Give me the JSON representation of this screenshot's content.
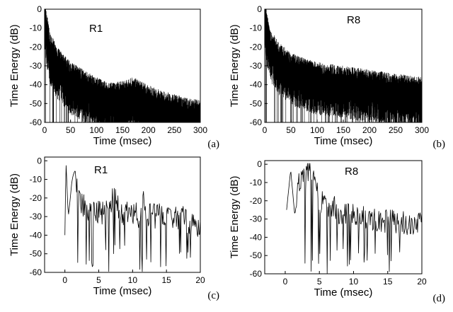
{
  "chart_data": [
    {
      "id": "a",
      "type": "line",
      "panel_label": "(a)",
      "title": "R1",
      "xlabel": "Time (msec)",
      "ylabel": "Time Energy (dB)",
      "xlim": [
        0,
        300
      ],
      "ylim": [
        -60,
        0
      ],
      "xticks": [
        0,
        50,
        100,
        150,
        200,
        250,
        300
      ],
      "yticks": [
        0,
        -10,
        -20,
        -30,
        -40,
        -50,
        -60
      ],
      "style": "dense",
      "series": [
        {
          "decay": [
            [
              0,
              -5
            ],
            [
              10,
              -22
            ],
            [
              25,
              -30
            ],
            [
              50,
              -38
            ],
            [
              75,
              -42
            ],
            [
              100,
              -46
            ],
            [
              125,
              -49
            ],
            [
              150,
              -48
            ],
            [
              170,
              -46
            ],
            [
              200,
              -50
            ],
            [
              225,
              -53
            ],
            [
              250,
              -55
            ],
            [
              275,
              -57
            ],
            [
              300,
              -58
            ]
          ],
          "initial_peak": [
            2,
            0
          ]
        }
      ]
    },
    {
      "id": "b",
      "type": "line",
      "panel_label": "(b)",
      "title": "R8",
      "xlabel": "Time (msec)",
      "ylabel": "Time Energy (dB)",
      "xlim": [
        0,
        300
      ],
      "ylim": [
        -60,
        0
      ],
      "xticks": [
        0,
        50,
        100,
        150,
        200,
        250,
        300
      ],
      "yticks": [
        0,
        -10,
        -20,
        -30,
        -40,
        -50,
        -60
      ],
      "style": "dense",
      "series": [
        {
          "decay": [
            [
              0,
              -5
            ],
            [
              10,
              -20
            ],
            [
              25,
              -27
            ],
            [
              50,
              -33
            ],
            [
              75,
              -36
            ],
            [
              100,
              -38
            ],
            [
              150,
              -40
            ],
            [
              200,
              -42
            ],
            [
              250,
              -44
            ],
            [
              300,
              -46
            ]
          ],
          "initial_peak": [
            3,
            0
          ]
        }
      ]
    },
    {
      "id": "c",
      "type": "line",
      "panel_label": "(c)",
      "title": "R1",
      "xlabel": "Time (msec)",
      "ylabel": "Time Energy (dB)",
      "xlim": [
        -3,
        20
      ],
      "ylim": [
        -60,
        2
      ],
      "xticks": [
        0,
        5,
        10,
        15,
        20
      ],
      "yticks": [
        0,
        -10,
        -20,
        -30,
        -40,
        -50,
        -60
      ],
      "style": "detail",
      "series": [
        {
          "start": 0,
          "x": [
            0,
            0.15,
            0.5,
            0.8,
            1.0,
            1.2,
            1.5,
            1.8,
            2.0,
            2.5,
            3,
            3.5,
            4,
            5,
            6,
            7,
            7.5,
            8,
            9,
            10,
            11,
            11.5,
            12,
            13,
            14,
            15,
            16,
            17,
            18,
            19,
            20
          ],
          "y": [
            -40,
            0,
            -30,
            -20,
            -12,
            -8,
            -5,
            -12,
            -22,
            -24,
            -25,
            -27,
            -26,
            -27,
            -28,
            -21,
            -18,
            -27,
            -28,
            -29,
            -30,
            -22,
            -28,
            -29,
            -30,
            -29,
            -30,
            -31,
            -32,
            -33,
            -35
          ]
        }
      ]
    },
    {
      "id": "d",
      "type": "line",
      "panel_label": "(d)",
      "title": "R8",
      "xlabel": "Time (msec)",
      "ylabel": "Time Energy (dB)",
      "xlim": [
        -3,
        20
      ],
      "ylim": [
        -60,
        2
      ],
      "xticks": [
        0,
        5,
        10,
        15,
        20
      ],
      "yticks": [
        0,
        -10,
        -20,
        -30,
        -40,
        -50,
        -60
      ],
      "style": "detail",
      "series": [
        {
          "start": 0.2,
          "x": [
            0.2,
            0.8,
            1.4,
            2.0,
            2.5,
            3.0,
            3.6,
            4.1,
            4.8,
            5.5,
            6,
            7,
            8,
            9,
            10,
            11,
            12,
            13,
            14,
            15,
            16,
            17,
            18,
            19,
            20
          ],
          "y": [
            -25,
            -3,
            -28,
            -12,
            -10,
            -8,
            -2,
            -3,
            -18,
            -22,
            -21,
            -24,
            -26,
            -27,
            -28,
            -29,
            -30,
            -31,
            -30,
            -31,
            -32,
            -31,
            -32,
            -33,
            -30
          ]
        }
      ]
    }
  ]
}
